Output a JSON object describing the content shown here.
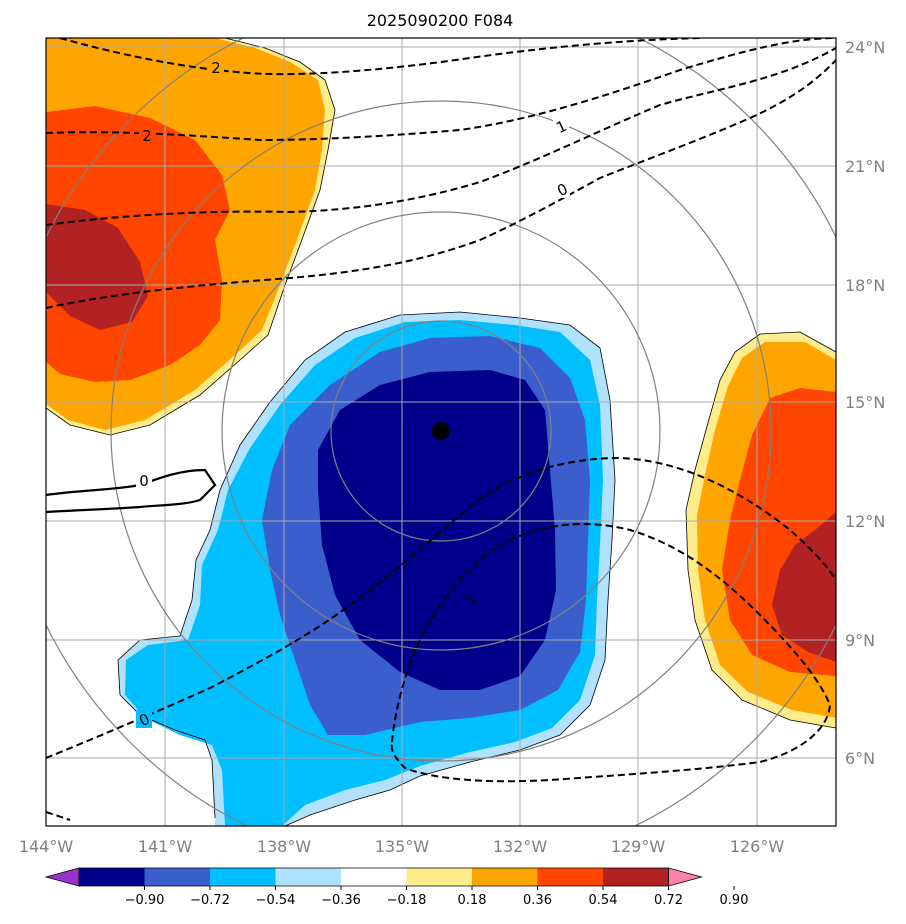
{
  "title": "2025090200 F084",
  "longitude_labels": [
    "144°W",
    "141°W",
    "138°W",
    "135°W",
    "132°W",
    "129°W",
    "126°W"
  ],
  "latitude_labels": [
    "24°N",
    "21°N",
    "18°N",
    "15°N",
    "12°N",
    "9°N",
    "6°N"
  ],
  "colorbar": {
    "colors": [
      "#9932CC",
      "#00008B",
      "#3A5FCD",
      "#00BFFF",
      "#B0E2FF",
      "#FFFFFF",
      "#FFEC8B",
      "#FFA500",
      "#FF4500",
      "#B22222",
      "#FF82AB"
    ],
    "tick_labels": [
      "−0.90",
      "−0.72",
      "−0.54",
      "−0.36",
      "−0.18",
      "0.18",
      "0.36",
      "0.54",
      "0.72",
      "0.90"
    ]
  },
  "contour_labels": {
    "label_2_top": "2",
    "label_2_left": "2",
    "label_1_topright": "1",
    "label_0_topright": "0",
    "label_0_solid": "0",
    "label_0_lower": "0",
    "label_1_lower": "1"
  },
  "storm_center": {
    "lon": "134°W",
    "lat": "14.3°N"
  },
  "colors": {
    "grid": "#a9a9a9",
    "range_rings": "#808080",
    "frame": "#000000"
  }
}
